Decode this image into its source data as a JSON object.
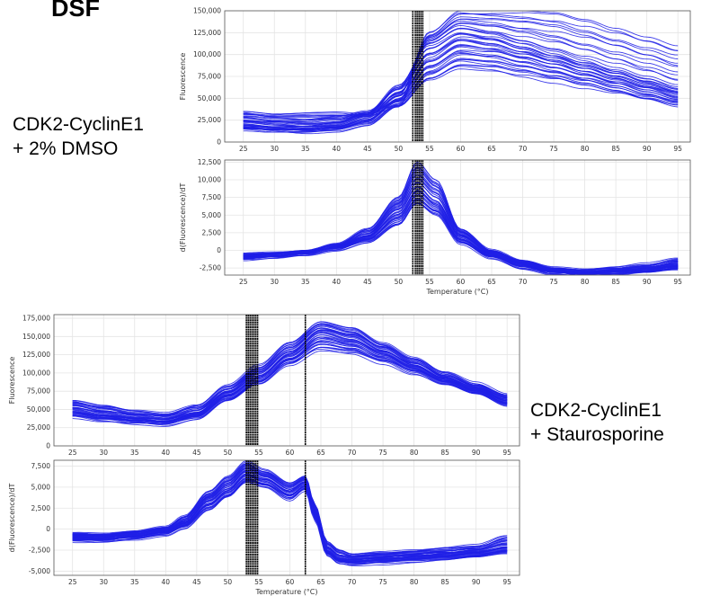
{
  "figure_title": "DSF",
  "conditions": [
    {
      "line1": "CDK2-CyclinE1",
      "line2": "+ 2% DMSO"
    },
    {
      "line1": "CDK2-CyclinE1",
      "line2": "+ Staurosporine"
    }
  ],
  "colors": {
    "curves": "#1f1fe6",
    "markers": "#000000",
    "grid": "#e4e4e4",
    "frame": "#555555"
  },
  "chart_data": [
    {
      "type": "line",
      "panel": "DMSO fluorescence",
      "xlabel": "",
      "ylabel": "Fluorescence",
      "xlim": [
        22,
        97
      ],
      "ylim": [
        0,
        150000
      ],
      "xticks": [
        "25",
        "30",
        "35",
        "40",
        "45",
        "50",
        "55",
        "60",
        "65",
        "70",
        "75",
        "80",
        "85",
        "90",
        "95"
      ],
      "yticks": [
        "0",
        "25,000",
        "50,000",
        "75,000",
        "100,000",
        "125,000",
        "150,000"
      ],
      "grid": true,
      "n_curves": 40,
      "vlines": [
        52.3,
        52.7,
        53.0,
        53.3,
        53.6,
        53.9
      ],
      "series": [
        {
          "x": [
            25,
            30,
            35,
            40,
            45,
            50,
            55,
            60,
            65,
            70,
            75,
            80,
            85,
            90,
            95
          ],
          "values": [
            35000,
            32000,
            33000,
            33000,
            30000,
            40000,
            125000,
            150000,
            150000,
            150000,
            148000,
            140000,
            130000,
            120000,
            110000
          ]
        },
        {
          "x": [
            25,
            30,
            35,
            40,
            45,
            50,
            55,
            60,
            65,
            70,
            75,
            80,
            85,
            90,
            95
          ],
          "values": [
            26000,
            23000,
            21000,
            24000,
            34000,
            65000,
            112000,
            128000,
            122000,
            112000,
            102000,
            92000,
            82000,
            72000,
            62000
          ]
        },
        {
          "x": [
            25,
            30,
            35,
            40,
            45,
            50,
            55,
            60,
            65,
            70,
            75,
            80,
            85,
            90,
            95
          ],
          "values": [
            18000,
            16000,
            15000,
            17000,
            26000,
            50000,
            90000,
            108000,
            104000,
            96000,
            88000,
            79000,
            70000,
            61000,
            52000
          ]
        },
        {
          "x": [
            25,
            30,
            35,
            40,
            45,
            50,
            55,
            60,
            65,
            70,
            75,
            80,
            85,
            90,
            95
          ],
          "values": [
            15000,
            13000,
            12000,
            14000,
            20000,
            40000,
            70000,
            84000,
            82000,
            76000,
            70000,
            63000,
            56000,
            48000,
            41000
          ]
        }
      ]
    },
    {
      "type": "line",
      "panel": "DMSO derivative",
      "xlabel": "Temperature (°C)",
      "ylabel": "d(Fluorescence)/dT",
      "xlim": [
        22,
        97
      ],
      "ylim": [
        -3500,
        12800
      ],
      "xticks": [
        "25",
        "30",
        "35",
        "40",
        "45",
        "50",
        "55",
        "60",
        "65",
        "70",
        "75",
        "80",
        "85",
        "90",
        "95"
      ],
      "yticks": [
        "-2,500",
        "0",
        "2,500",
        "5,000",
        "7,500",
        "10,000",
        "12,500"
      ],
      "grid": true,
      "n_curves": 40,
      "vlines": [
        52.3,
        52.7,
        53.0,
        53.3,
        53.6,
        53.9
      ],
      "series": [
        {
          "x": [
            25,
            30,
            35,
            40,
            45,
            50,
            53,
            56,
            60,
            65,
            70,
            75,
            80,
            85,
            90,
            95
          ],
          "values": [
            -500,
            -400,
            -200,
            800,
            3000,
            7500,
            12500,
            10000,
            3000,
            0,
            -1500,
            -2500,
            -2800,
            -2500,
            -2000,
            -1200
          ]
        },
        {
          "x": [
            25,
            30,
            35,
            40,
            45,
            50,
            53,
            56,
            60,
            65,
            70,
            75,
            80,
            85,
            90,
            95
          ],
          "values": [
            -900,
            -700,
            -300,
            500,
            2000,
            5500,
            9000,
            7000,
            2000,
            -500,
            -2000,
            -3000,
            -3300,
            -3000,
            -2700,
            -2200
          ]
        },
        {
          "x": [
            25,
            30,
            35,
            40,
            45,
            50,
            53,
            56,
            60,
            65,
            70,
            75,
            80,
            85,
            90,
            95
          ],
          "values": [
            -1200,
            -900,
            -500,
            200,
            1200,
            3500,
            6500,
            5000,
            1000,
            -1000,
            -2500,
            -3200,
            -3500,
            -3300,
            -3000,
            -2600
          ]
        }
      ]
    },
    {
      "type": "line",
      "panel": "Staurosporine fluorescence",
      "xlabel": "",
      "ylabel": "Fluorescence",
      "xlim": [
        22,
        97
      ],
      "ylim": [
        0,
        180000
      ],
      "xticks": [
        "25",
        "30",
        "35",
        "40",
        "45",
        "50",
        "55",
        "60",
        "65",
        "70",
        "75",
        "80",
        "85",
        "90",
        "95"
      ],
      "yticks": [
        "0",
        "25,000",
        "50,000",
        "75,000",
        "100,000",
        "125,000",
        "150,000",
        "175,000"
      ],
      "grid": true,
      "n_curves": 40,
      "vlines": [
        53.0,
        53.3,
        53.6,
        53.9,
        54.2,
        54.5,
        54.8,
        62.5
      ],
      "series": [
        {
          "x": [
            25,
            30,
            35,
            40,
            45,
            50,
            55,
            60,
            65,
            70,
            75,
            80,
            85,
            90,
            95
          ],
          "values": [
            62000,
            55000,
            48000,
            44000,
            55000,
            82000,
            110000,
            142000,
            170000,
            162000,
            140000,
            120000,
            100000,
            85000,
            70000
          ]
        },
        {
          "x": [
            25,
            30,
            35,
            40,
            45,
            50,
            55,
            60,
            65,
            70,
            75,
            80,
            85,
            90,
            95
          ],
          "values": [
            50000,
            43000,
            38000,
            35000,
            45000,
            72000,
            96000,
            125000,
            155000,
            145000,
            128000,
            110000,
            92000,
            78000,
            63000
          ]
        },
        {
          "x": [
            25,
            30,
            35,
            40,
            45,
            50,
            55,
            60,
            65,
            70,
            75,
            80,
            85,
            90,
            95
          ],
          "values": [
            40000,
            35000,
            32000,
            30000,
            38000,
            62000,
            85000,
            112000,
            132000,
            128000,
            115000,
            100000,
            85000,
            72000,
            56000
          ]
        }
      ]
    },
    {
      "type": "line",
      "panel": "Staurosporine derivative",
      "xlabel": "Temperature (°C)",
      "ylabel": "d(Fluorescence)/dT",
      "xlim": [
        22,
        97
      ],
      "ylim": [
        -5500,
        8200
      ],
      "xticks": [
        "25",
        "30",
        "35",
        "40",
        "45",
        "50",
        "55",
        "60",
        "65",
        "70",
        "75",
        "80",
        "85",
        "90",
        "95"
      ],
      "yticks": [
        "-5,000",
        "-2,500",
        "0",
        "2,500",
        "5,000",
        "7,500"
      ],
      "grid": true,
      "n_curves": 40,
      "vlines": [
        53.0,
        53.3,
        53.6,
        53.9,
        54.2,
        54.5,
        54.8,
        62.5
      ],
      "series": [
        {
          "x": [
            25,
            30,
            35,
            40,
            43,
            47,
            50,
            53,
            56,
            60,
            62.5,
            64,
            66,
            68,
            70,
            75,
            80,
            85,
            90,
            95
          ],
          "values": [
            -500,
            -600,
            -300,
            200,
            1500,
            4500,
            6200,
            8000,
            7000,
            5500,
            6300,
            3000,
            -1500,
            -2500,
            -3000,
            -2800,
            -2600,
            -2300,
            -2000,
            -800
          ]
        },
        {
          "x": [
            25,
            30,
            35,
            40,
            43,
            47,
            50,
            53,
            56,
            60,
            62.5,
            64,
            66,
            68,
            70,
            75,
            80,
            85,
            90,
            95
          ],
          "values": [
            -900,
            -1000,
            -700,
            -200,
            800,
            3500,
            5000,
            6800,
            6000,
            4500,
            5500,
            2000,
            -2500,
            -3500,
            -3600,
            -3400,
            -3200,
            -3000,
            -2700,
            -2200
          ]
        },
        {
          "x": [
            25,
            30,
            35,
            40,
            43,
            47,
            50,
            53,
            56,
            60,
            62.5,
            64,
            66,
            68,
            70,
            75,
            80,
            85,
            90,
            95
          ],
          "values": [
            -1400,
            -1400,
            -1100,
            -600,
            200,
            2300,
            3800,
            5500,
            5000,
            3500,
            4700,
            1200,
            -3000,
            -4000,
            -4200,
            -4000,
            -3800,
            -3600,
            -3300,
            -2800
          ]
        }
      ]
    }
  ]
}
